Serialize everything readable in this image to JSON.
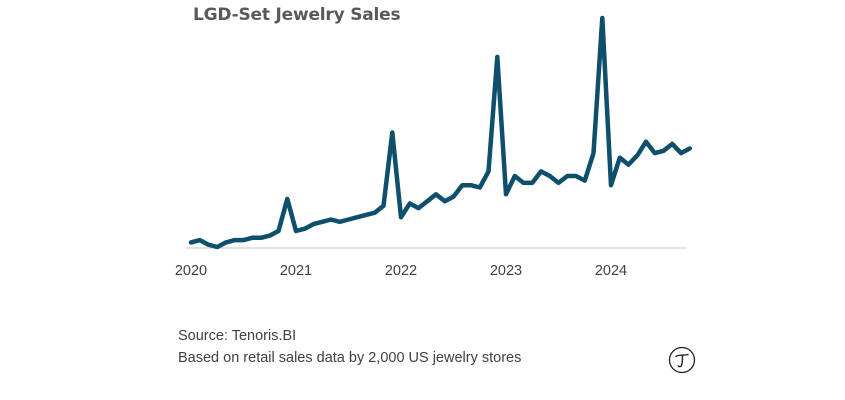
{
  "header": {
    "title": "LGD-Set Jewelry Sales"
  },
  "chart_data": {
    "type": "line",
    "title": "LGD-Set Jewelry Sales",
    "xlabel": "",
    "ylabel": "",
    "x_tick_labels": [
      "2020",
      "2021",
      "2022",
      "2023",
      "2024"
    ],
    "grid": false,
    "legend": "none",
    "y_axis_labels": "none",
    "x_start": "2020-01",
    "x_end": "2024-10",
    "ylim": [
      0,
      100
    ],
    "series": [
      {
        "color": "#0e4f6b",
        "x": [
          "2020-01",
          "2020-02",
          "2020-03",
          "2020-04",
          "2020-05",
          "2020-06",
          "2020-07",
          "2020-08",
          "2020-09",
          "2020-10",
          "2020-11",
          "2020-12",
          "2021-01",
          "2021-02",
          "2021-03",
          "2021-04",
          "2021-05",
          "2021-06",
          "2021-07",
          "2021-08",
          "2021-09",
          "2021-10",
          "2021-11",
          "2021-12",
          "2022-01",
          "2022-02",
          "2022-03",
          "2022-04",
          "2022-05",
          "2022-06",
          "2022-07",
          "2022-08",
          "2022-09",
          "2022-10",
          "2022-11",
          "2022-12",
          "2023-01",
          "2023-02",
          "2023-03",
          "2023-04",
          "2023-05",
          "2023-06",
          "2023-07",
          "2023-08",
          "2023-09",
          "2023-10",
          "2023-11",
          "2023-12",
          "2024-01",
          "2024-02",
          "2024-03",
          "2024-04",
          "2024-05",
          "2024-06",
          "2024-07",
          "2024-08",
          "2024-09",
          "2024-10"
        ],
        "values": [
          2,
          3,
          1,
          0,
          2,
          3,
          3,
          4,
          4,
          5,
          7,
          21,
          7,
          8,
          10,
          11,
          12,
          11,
          12,
          13,
          14,
          15,
          18,
          50,
          13,
          19,
          17,
          20,
          23,
          20,
          22,
          27,
          27,
          26,
          33,
          83,
          23,
          31,
          28,
          28,
          33,
          31,
          28,
          31,
          31,
          29,
          41,
          100,
          27,
          39,
          36,
          40,
          46,
          41,
          42,
          45,
          41,
          43
        ]
      }
    ]
  },
  "footer": {
    "source": "Source: Tenoris.BI",
    "note": "Based on retail sales data by 2,000 US jewelry stores"
  },
  "logo": {
    "name": "tenoris-logo-icon",
    "color": "#222222"
  }
}
